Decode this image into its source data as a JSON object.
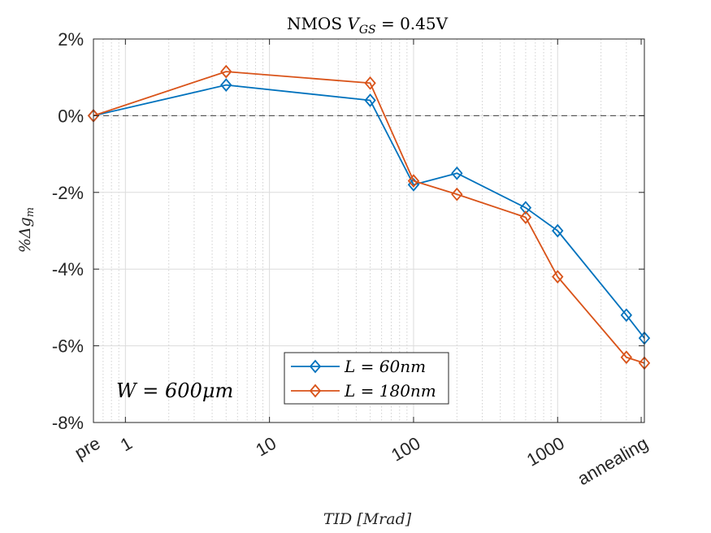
{
  "chart_data": {
    "type": "line",
    "title": "NMOS V_GS = 0.45V",
    "title_main": "NMOS ",
    "title_var": "V",
    "title_sub": "GS",
    "title_rest": " = 0.45V",
    "xlabel": "TID [Mrad]",
    "ylabel": "%Δg_m",
    "ylabel_main": "%Δg",
    "ylabel_sub": "m",
    "x_scale": "log",
    "xlim": [
      0.6,
      4000
    ],
    "ylim": [
      -8,
      2
    ],
    "x_ticks": [
      {
        "value": 0.6,
        "label": "pre"
      },
      {
        "value": 1,
        "label": "1"
      },
      {
        "value": 10,
        "label": "10"
      },
      {
        "value": 100,
        "label": "100"
      },
      {
        "value": 1000,
        "label": "1000"
      },
      {
        "value": 3800,
        "label": "annealing"
      }
    ],
    "y_ticks": [
      {
        "value": 2,
        "label": "2%"
      },
      {
        "value": 0,
        "label": "0%"
      },
      {
        "value": -2,
        "label": "-2%"
      },
      {
        "value": -4,
        "label": "-4%"
      },
      {
        "value": -6,
        "label": "-6%"
      },
      {
        "value": -8,
        "label": "-8%"
      }
    ],
    "grid": true,
    "reference_line": {
      "y": 0,
      "style": "dashed"
    },
    "x": [
      0.6,
      5,
      50,
      100,
      200,
      600,
      1000,
      3000,
      4000
    ],
    "series": [
      {
        "name": "L = 60nm",
        "color": "#0072BD",
        "values": [
          0.0,
          0.8,
          0.4,
          -1.8,
          -1.5,
          -2.4,
          -3.0,
          -5.2,
          -5.8
        ]
      },
      {
        "name": "L = 180nm",
        "color": "#D95319",
        "values": [
          0.0,
          1.15,
          0.85,
          -1.7,
          -2.05,
          -2.65,
          -4.2,
          -6.3,
          -6.45
        ]
      }
    ],
    "legend_position": "bottom-center",
    "annotation": "W = 600μm"
  }
}
